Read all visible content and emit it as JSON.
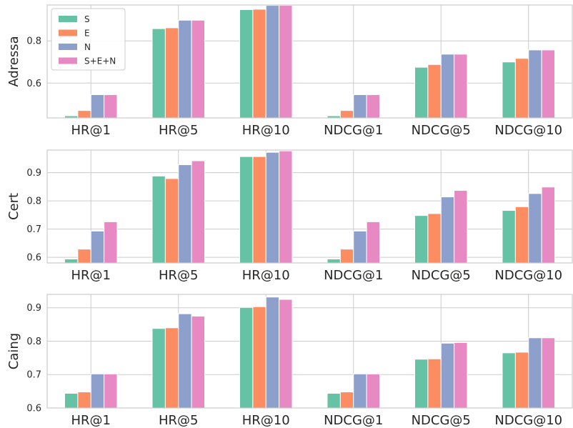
{
  "chart_data": [
    {
      "type": "bar",
      "ylabel": "Adressa",
      "categories": [
        "HR@1",
        "HR@5",
        "HR@10",
        "NDCG@1",
        "NDCG@5",
        "NDCG@10"
      ],
      "ylim": [
        0.435,
        0.97
      ],
      "yticks": [
        0.6,
        0.8
      ],
      "series": [
        {
          "name": "S",
          "values": [
            0.445,
            0.858,
            0.948,
            0.445,
            0.675,
            0.7
          ]
        },
        {
          "name": "E",
          "values": [
            0.47,
            0.862,
            0.95,
            0.47,
            0.688,
            0.717
          ]
        },
        {
          "name": "N",
          "values": [
            0.545,
            0.898,
            0.968,
            0.545,
            0.737,
            0.757
          ]
        },
        {
          "name": "S+E+N",
          "values": [
            0.545,
            0.898,
            0.968,
            0.545,
            0.737,
            0.757
          ]
        }
      ],
      "legend": {
        "show": true,
        "placement": "top-left",
        "labels": [
          "S",
          "E",
          "N",
          "S+E+N"
        ]
      },
      "grid": true
    },
    {
      "type": "bar",
      "ylabel": "Cert",
      "categories": [
        "HR@1",
        "HR@5",
        "HR@10",
        "NDCG@1",
        "NDCG@5",
        "NDCG@10"
      ],
      "ylim": [
        0.58,
        0.98
      ],
      "yticks": [
        0.6,
        0.7,
        0.8,
        0.9
      ],
      "series": [
        {
          "name": "S",
          "values": [
            0.594,
            0.888,
            0.957,
            0.594,
            0.748,
            0.766
          ]
        },
        {
          "name": "E",
          "values": [
            0.629,
            0.879,
            0.957,
            0.629,
            0.755,
            0.779
          ]
        },
        {
          "name": "N",
          "values": [
            0.693,
            0.928,
            0.972,
            0.693,
            0.814,
            0.826
          ]
        },
        {
          "name": "S+E+N",
          "values": [
            0.726,
            0.942,
            0.977,
            0.726,
            0.837,
            0.849
          ]
        }
      ],
      "legend": {
        "show": false
      },
      "grid": true
    },
    {
      "type": "bar",
      "ylabel": "Caing",
      "categories": [
        "HR@1",
        "HR@5",
        "HR@10",
        "NDCG@1",
        "NDCG@5",
        "NDCG@10"
      ],
      "ylim": [
        0.6,
        0.94
      ],
      "yticks": [
        0.6,
        0.7,
        0.8,
        0.9
      ],
      "series": [
        {
          "name": "S",
          "values": [
            0.644,
            0.838,
            0.901,
            0.644,
            0.746,
            0.765
          ]
        },
        {
          "name": "E",
          "values": [
            0.648,
            0.84,
            0.903,
            0.648,
            0.747,
            0.767
          ]
        },
        {
          "name": "N",
          "values": [
            0.702,
            0.882,
            0.932,
            0.702,
            0.794,
            0.81
          ]
        },
        {
          "name": "S+E+N",
          "values": [
            0.702,
            0.875,
            0.925,
            0.702,
            0.796,
            0.81
          ]
        }
      ],
      "legend": {
        "show": false
      },
      "grid": true
    }
  ],
  "colors": {
    "S": "#66c2a5",
    "E": "#fc8d62",
    "N": "#8da0cb",
    "S+E+N": "#e78ac3",
    "grid": "#cccccc",
    "axes_edge": "#cccccc",
    "text": "#262626"
  }
}
